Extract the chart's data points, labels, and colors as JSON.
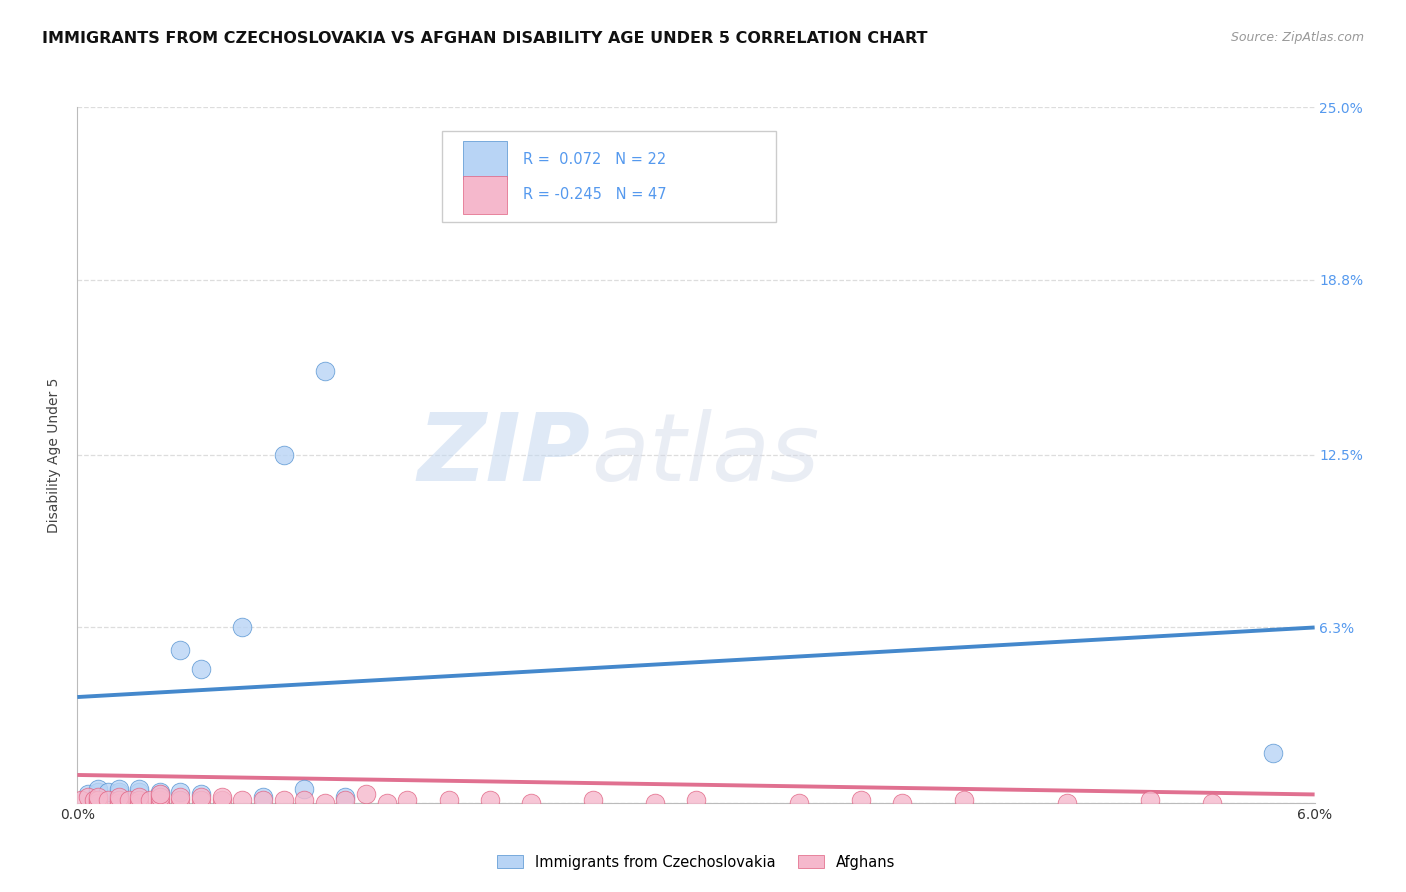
{
  "title": "IMMIGRANTS FROM CZECHOSLOVAKIA VS AFGHAN DISABILITY AGE UNDER 5 CORRELATION CHART",
  "source": "Source: ZipAtlas.com",
  "ylabel": "Disability Age Under 5",
  "xlim": [
    0.0,
    0.06
  ],
  "ylim": [
    0.0,
    0.25
  ],
  "ytick_vals": [
    0.0,
    0.063,
    0.125,
    0.188,
    0.25
  ],
  "ytick_labels": [
    "",
    "6.3%",
    "12.5%",
    "18.8%",
    "25.0%"
  ],
  "xtick_vals": [
    0.0,
    0.06
  ],
  "xtick_labels": [
    "0.0%",
    "6.0%"
  ],
  "blue_R": "0.072",
  "blue_N": "22",
  "pink_R": "-0.245",
  "pink_N": "47",
  "legend_label_blue": "Immigrants from Czechoslovakia",
  "legend_label_pink": "Afghans",
  "blue_fill": "#b8d4f5",
  "pink_fill": "#f5b8cc",
  "blue_edge": "#5090d0",
  "pink_edge": "#e06080",
  "blue_line_color": "#4488cc",
  "pink_line_color": "#e07090",
  "blue_scatter": [
    [
      0.0005,
      0.003
    ],
    [
      0.001,
      0.004
    ],
    [
      0.001,
      0.005
    ],
    [
      0.0015,
      0.004
    ],
    [
      0.002,
      0.003
    ],
    [
      0.002,
      0.004
    ],
    [
      0.002,
      0.005
    ],
    [
      0.003,
      0.004
    ],
    [
      0.003,
      0.005
    ],
    [
      0.004,
      0.003
    ],
    [
      0.004,
      0.004
    ],
    [
      0.005,
      0.004
    ],
    [
      0.005,
      0.055
    ],
    [
      0.006,
      0.003
    ],
    [
      0.006,
      0.048
    ],
    [
      0.008,
      0.063
    ],
    [
      0.009,
      0.002
    ],
    [
      0.01,
      0.125
    ],
    [
      0.011,
      0.005
    ],
    [
      0.012,
      0.155
    ],
    [
      0.013,
      0.002
    ],
    [
      0.058,
      0.018
    ]
  ],
  "pink_scatter": [
    [
      0.0002,
      0.001
    ],
    [
      0.0005,
      0.002
    ],
    [
      0.0008,
      0.001
    ],
    [
      0.001,
      0.0
    ],
    [
      0.001,
      0.001
    ],
    [
      0.001,
      0.002
    ],
    [
      0.0015,
      0.001
    ],
    [
      0.002,
      0.0
    ],
    [
      0.002,
      0.001
    ],
    [
      0.002,
      0.002
    ],
    [
      0.0025,
      0.001
    ],
    [
      0.003,
      0.0
    ],
    [
      0.003,
      0.001
    ],
    [
      0.003,
      0.002
    ],
    [
      0.0035,
      0.001
    ],
    [
      0.004,
      0.0
    ],
    [
      0.004,
      0.001
    ],
    [
      0.004,
      0.002
    ],
    [
      0.004,
      0.003
    ],
    [
      0.005,
      0.001
    ],
    [
      0.005,
      0.002
    ],
    [
      0.006,
      0.001
    ],
    [
      0.006,
      0.002
    ],
    [
      0.007,
      0.001
    ],
    [
      0.007,
      0.002
    ],
    [
      0.008,
      0.001
    ],
    [
      0.009,
      0.001
    ],
    [
      0.01,
      0.001
    ],
    [
      0.011,
      0.001
    ],
    [
      0.012,
      0.0
    ],
    [
      0.013,
      0.001
    ],
    [
      0.014,
      0.003
    ],
    [
      0.015,
      0.0
    ],
    [
      0.016,
      0.001
    ],
    [
      0.018,
      0.001
    ],
    [
      0.02,
      0.001
    ],
    [
      0.022,
      0.0
    ],
    [
      0.025,
      0.001
    ],
    [
      0.028,
      0.0
    ],
    [
      0.03,
      0.001
    ],
    [
      0.035,
      0.0
    ],
    [
      0.038,
      0.001
    ],
    [
      0.04,
      0.0
    ],
    [
      0.043,
      0.001
    ],
    [
      0.048,
      0.0
    ],
    [
      0.052,
      0.001
    ],
    [
      0.055,
      0.0
    ]
  ],
  "blue_line_x": [
    0.0,
    0.06
  ],
  "blue_line_y": [
    0.038,
    0.063
  ],
  "pink_line_x": [
    0.0,
    0.06
  ],
  "pink_line_y": [
    0.01,
    0.003
  ],
  "watermark_zip": "ZIP",
  "watermark_atlas": "atlas",
  "background_color": "#ffffff",
  "grid_color": "#dddddd",
  "right_tick_color": "#5599ee",
  "title_fontsize": 11.5,
  "tick_fontsize": 10,
  "ylabel_fontsize": 10
}
